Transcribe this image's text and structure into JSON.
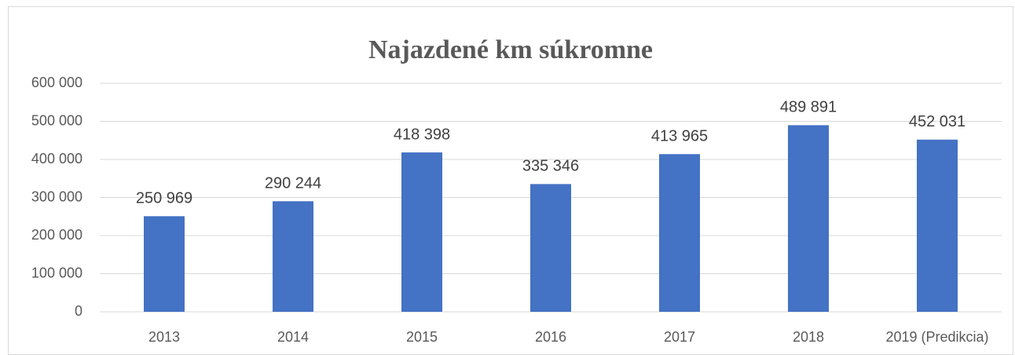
{
  "chart_data": {
    "type": "bar",
    "title": "Najazdené km súkromne",
    "categories": [
      "2013",
      "2014",
      "2015",
      "2016",
      "2017",
      "2018",
      "2019 (Predikcia)"
    ],
    "values": [
      250969,
      290244,
      418398,
      335346,
      413965,
      489891,
      452031
    ],
    "value_labels": [
      "250 969",
      "290 244",
      "418 398",
      "335 346",
      "413 965",
      "489 891",
      "452 031"
    ],
    "color": "#4472c4",
    "ylim": [
      0,
      600000
    ],
    "yticks": [
      0,
      {
        "value": 100000,
        "label": "100 000"
      },
      {
        "value": 200000,
        "label": "200 000"
      },
      {
        "value": 300000,
        "label": "300 000"
      },
      {
        "value": 400000,
        "label": "400 000"
      },
      {
        "value": 500000,
        "label": "500 000"
      },
      {
        "value": 600000,
        "label": "600 000"
      }
    ],
    "grid": true
  }
}
